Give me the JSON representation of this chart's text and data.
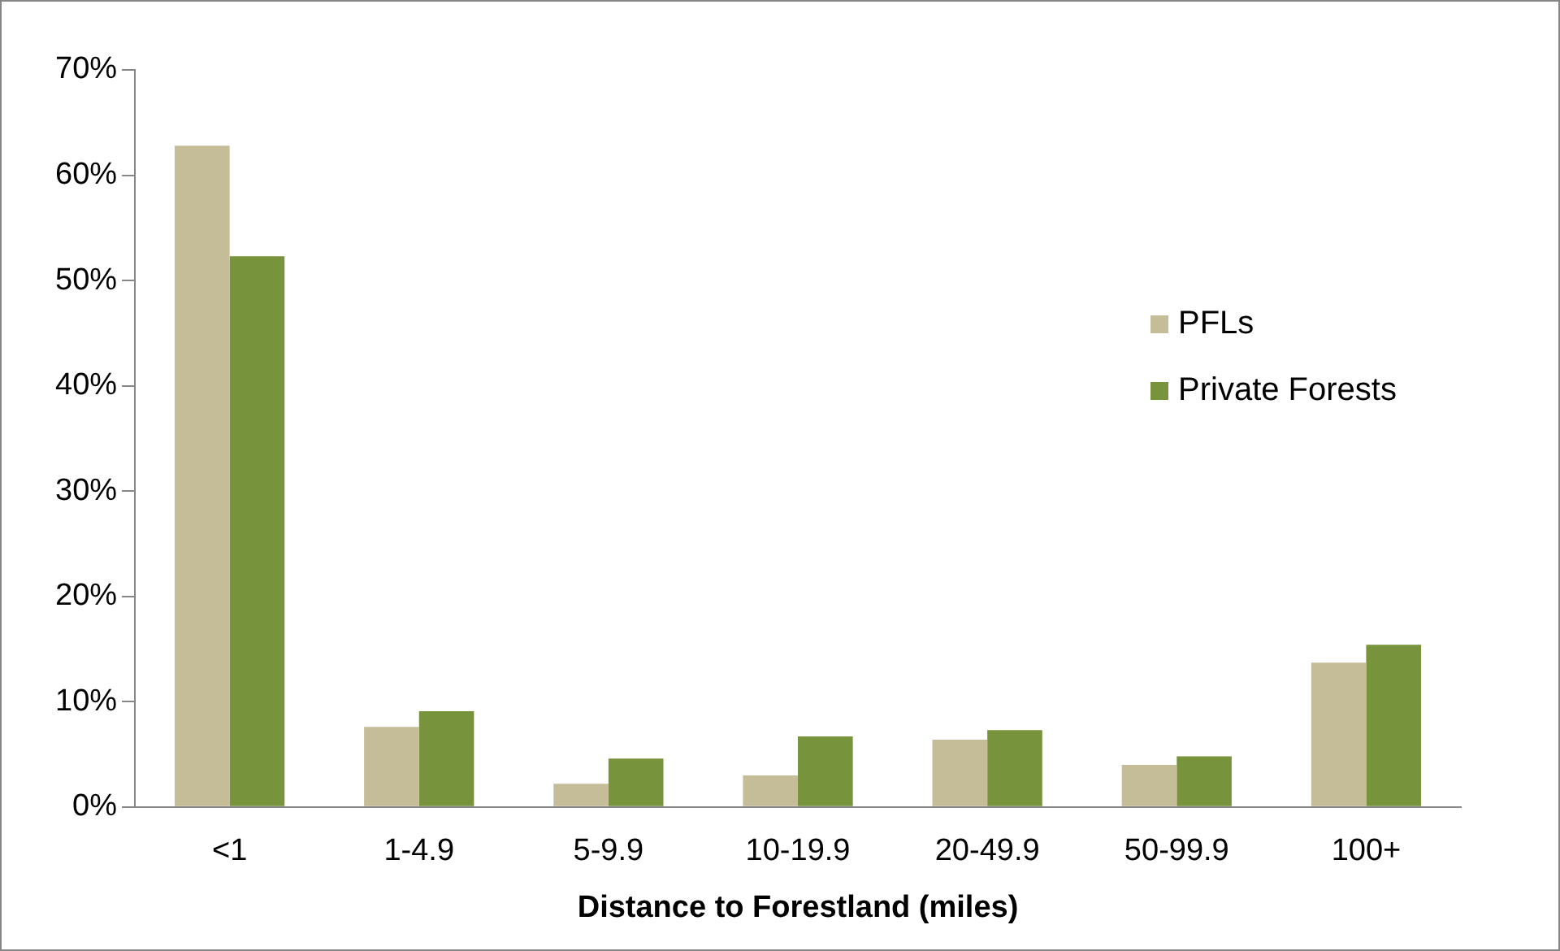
{
  "chart_data": {
    "type": "bar",
    "xlabel": "Distance to Forestland (miles)",
    "categories": [
      "<1",
      "1-4.9",
      "5-9.9",
      "10-19.9",
      "20-49.9",
      "50-99.9",
      "100+"
    ],
    "series": [
      {
        "name": "PFLs",
        "color": "#c4bd97",
        "values": [
          62.8,
          7.6,
          2.2,
          3.0,
          6.4,
          4.0,
          13.7
        ]
      },
      {
        "name": "Private Forests",
        "color": "#77933c",
        "values": [
          52.3,
          9.1,
          4.6,
          6.7,
          7.3,
          4.8,
          15.4
        ]
      }
    ],
    "ylim": [
      0,
      70
    ],
    "yticks": [
      {
        "value": 0,
        "label": "0%"
      },
      {
        "value": 10,
        "label": "10%"
      },
      {
        "value": 20,
        "label": "20%"
      },
      {
        "value": 30,
        "label": "30%"
      },
      {
        "value": 40,
        "label": "40%"
      },
      {
        "value": 50,
        "label": "50%"
      },
      {
        "value": 60,
        "label": "60%"
      },
      {
        "value": 70,
        "label": "70%"
      }
    ],
    "grid": false,
    "legend": "right"
  }
}
